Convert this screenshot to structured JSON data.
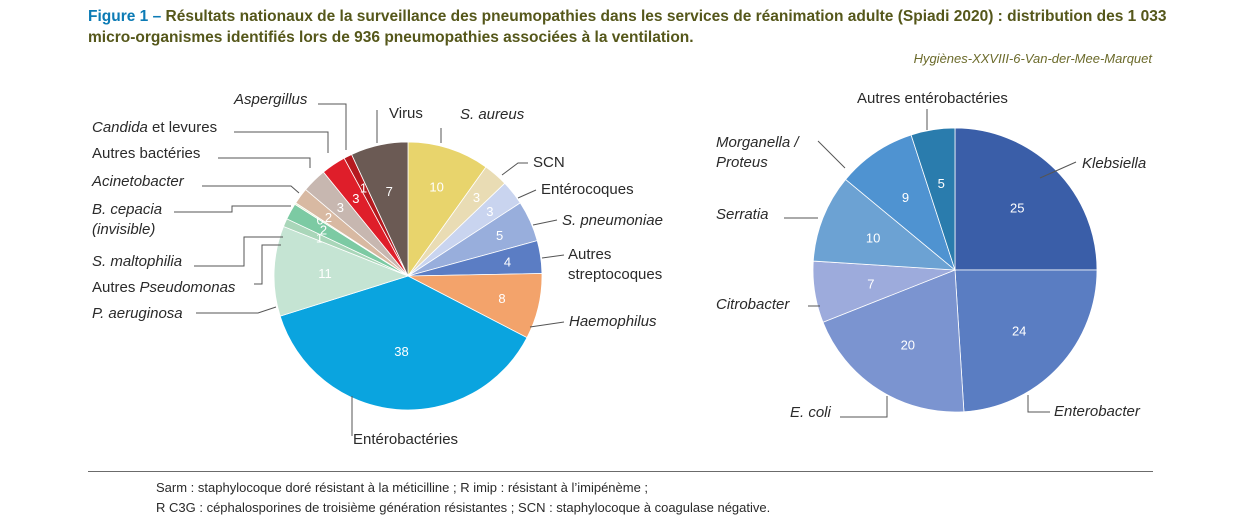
{
  "header": {
    "figure_label": "Figure 1 – ",
    "title_text": "Résultats nationaux de la surveillance des pneumopathies dans les services de réanimation adulte (Spiadi 2020) : distribution des 1 033 micro-organismes identifiés lors de 936 pneumopathies associées à la ventilation.",
    "credit": "Hygiènes-XXVIII-6-Van-der-Mee-Marquet"
  },
  "chart_data": [
    {
      "type": "pie",
      "slices": [
        {
          "label": "S. aureus",
          "value": 10,
          "value_label": "10",
          "color": "#e8d46c",
          "italic": true
        },
        {
          "label": "SCN",
          "value": 3,
          "value_label": "3",
          "color": "#e9dcb4",
          "italic": false
        },
        {
          "label": "Entérocoques",
          "value": 3,
          "value_label": "3",
          "color": "#c9d4ef",
          "italic": false
        },
        {
          "label": "S. pneumoniae",
          "value": 5,
          "value_label": "5",
          "color": "#98aedc",
          "italic": true
        },
        {
          "label": "Autres|streptocoques",
          "value": 4,
          "value_label": "4",
          "color": "#5b7dc4",
          "italic": false
        },
        {
          "label": "Haemophilus",
          "value": 8,
          "value_label": "8",
          "color": "#f3a36b",
          "italic": true
        },
        {
          "label": "Entérobactéries",
          "value": 38,
          "value_label": "38",
          "color": "#0aa4df",
          "italic": false
        },
        {
          "label": "P. aeruginosa",
          "value": 11,
          "value_label": "11",
          "color": "#c5e4d3",
          "italic": true
        },
        {
          "label": "Autres Pseudomonas",
          "value": 1,
          "value_label": "1",
          "color": "#a9d6b9",
          "italic": false
        },
        {
          "label": "S. maltophilia",
          "value": 2,
          "value_label": "2",
          "color": "#7ccaa3",
          "italic": true
        },
        {
          "label": "B. cepacia|(invisible)",
          "value": 0.2,
          "value_label": "0",
          "color": "#e3ecc4",
          "italic": true
        },
        {
          "label": "Acinetobacter",
          "value": 2,
          "value_label": "2",
          "color": "#d8b9a2",
          "italic": true
        },
        {
          "label": "Autres bactéries",
          "value": 3,
          "value_label": "3",
          "color": "#c7b7b0",
          "italic": false
        },
        {
          "label": "Candida et levures",
          "value": 3,
          "value_label": "3",
          "color": "#df1e2a",
          "italic": false
        },
        {
          "label": "Aspergillus",
          "value": 1,
          "value_label": "1",
          "color": "#b5191f",
          "italic": true
        },
        {
          "label": "Virus",
          "value": 7,
          "value_label": "7",
          "color": "#6b5a54",
          "italic": false
        }
      ]
    },
    {
      "type": "pie",
      "slices": [
        {
          "label": "Klebsiella",
          "value": 25,
          "value_label": "25",
          "color": "#3a5ea8",
          "italic": true
        },
        {
          "label": "Enterobacter",
          "value": 24,
          "value_label": "24",
          "color": "#5a7dc2",
          "italic": true
        },
        {
          "label": "E. coli",
          "value": 20,
          "value_label": "20",
          "color": "#7b94d0",
          "italic": true
        },
        {
          "label": "Citrobacter",
          "value": 7,
          "value_label": "7",
          "color": "#9dabdc",
          "italic": true
        },
        {
          "label": "Serratia",
          "value": 10,
          "value_label": "10",
          "color": "#6ca2d3",
          "italic": true
        },
        {
          "label": "Morganella /|Proteus",
          "value": 9,
          "value_label": "9",
          "color": "#4f93d1",
          "italic": true
        },
        {
          "label": "Autres entérobactéries",
          "value": 5,
          "value_label": "5",
          "color": "#2a7cad",
          "italic": false
        }
      ]
    }
  ],
  "footnotes": {
    "line1": "Sarm : staphylocoque doré résistant à la méticilline ; R imip : résistant à l’imipénème ;",
    "line2": "R C3G : céphalosporines de troisième génération résistantes ; SCN : staphylocoque à coagulase négative."
  }
}
